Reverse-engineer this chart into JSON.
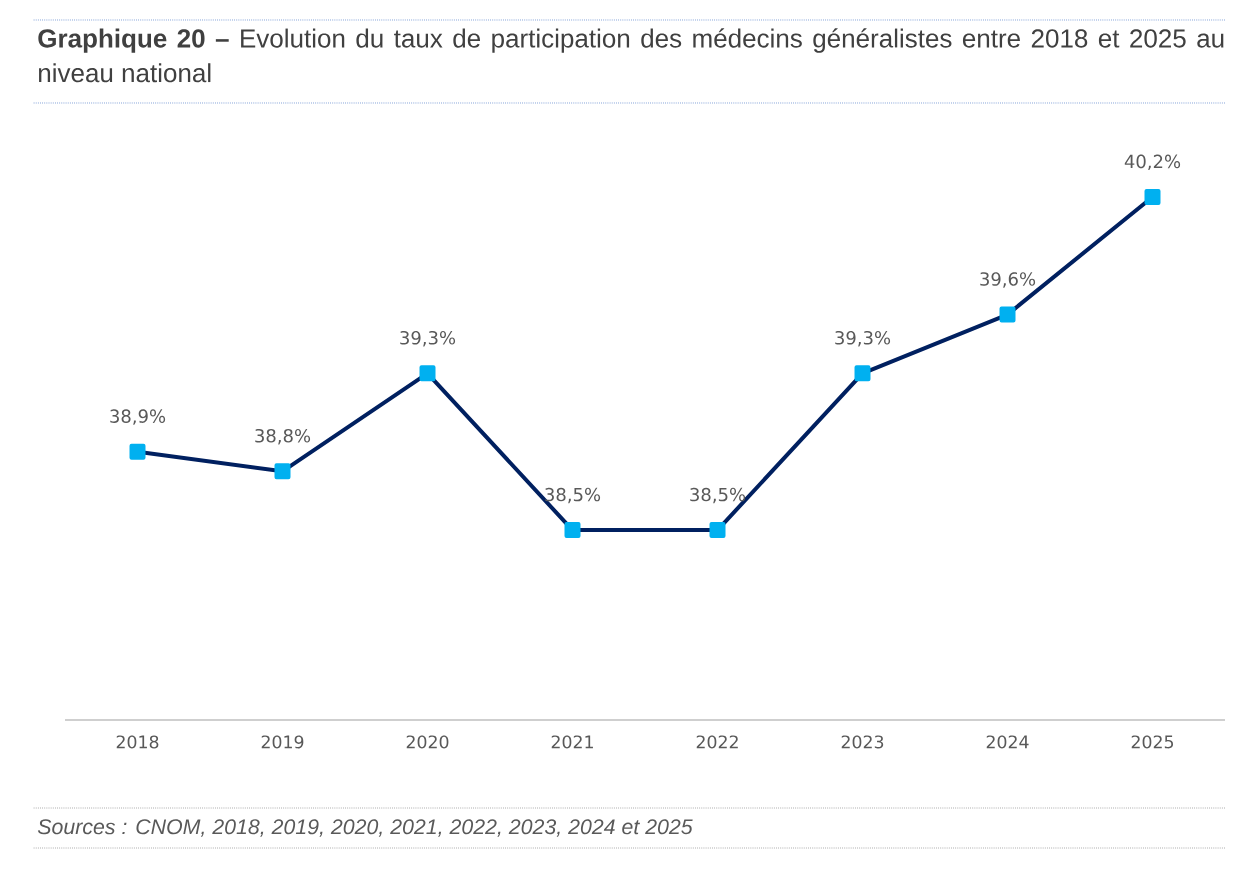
{
  "chart_data": {
    "type": "line",
    "title": "**Graphique 20 –** Evolution du taux de participation des médecins généralistes entre 2018 et 2025 au niveau national",
    "categories": [
      "2018",
      "2019",
      "2020",
      "2021",
      "2022",
      "2023",
      "2024",
      "2025"
    ],
    "values": [
      38.9,
      38.8,
      39.3,
      38.5,
      38.5,
      39.3,
      39.6,
      40.2
    ],
    "value_labels": [
      "38,9%",
      "38,8%",
      "39,3%",
      "38,5%",
      "38,5%",
      "39,3%",
      "39,6%",
      "40,2%"
    ],
    "color": "#002060",
    "colors": [
      "#00b0f0",
      "#00b0f0",
      "#00b0f0",
      "#00b0f0",
      "#00b0f0",
      "#00b0f0",
      "#00b0f0",
      "#00b0f0"
    ],
    "marker": "square",
    "line_style": "solid",
    "tick_labels": "x",
    "grid": false,
    "legend": false,
    "annotations": [
      "Sources : CNOM, 2018, 2019, 2020, 2021, 2022, 2023, 2024 et 2025"
    ]
  }
}
